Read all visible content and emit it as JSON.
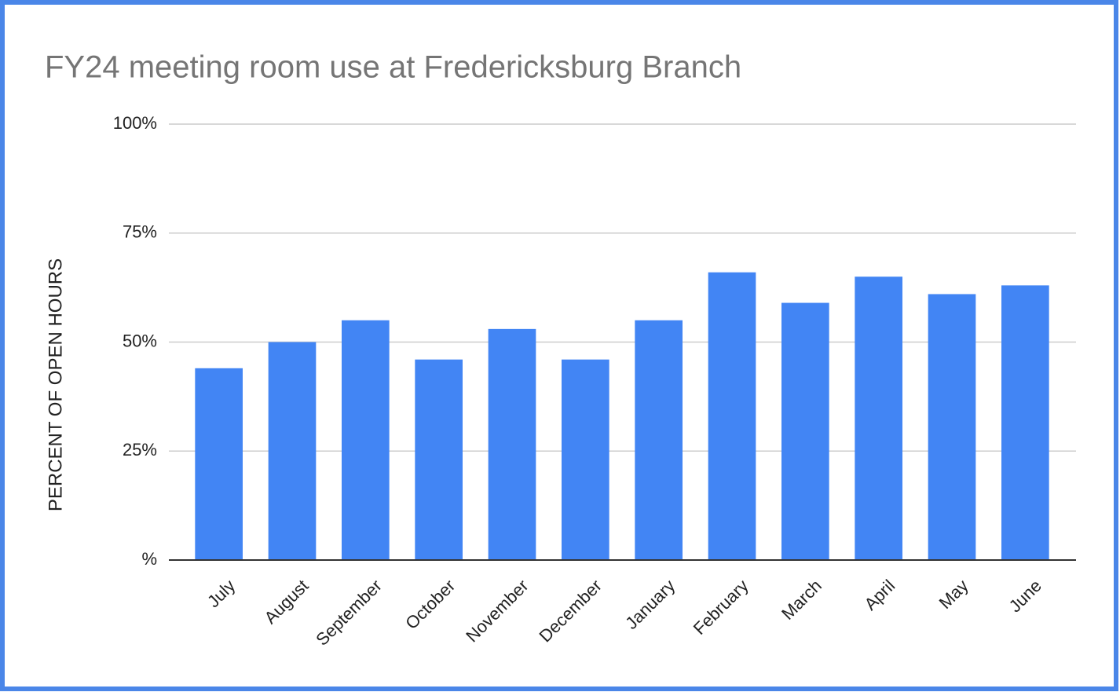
{
  "chart_data": {
    "type": "bar",
    "title": "FY24 meeting room use at Fredericksburg Branch",
    "y_label": "PERCENT OF OPEN HOURS",
    "categories": [
      "July",
      "August",
      "September",
      "October",
      "November",
      "December",
      "January",
      "February",
      "March",
      "April",
      "May",
      "June"
    ],
    "values": [
      44,
      50,
      55,
      46,
      53,
      46,
      55,
      66,
      59,
      65,
      61,
      63
    ],
    "color": "#4285f4",
    "ylim": [
      0,
      100
    ],
    "yticks": [
      {
        "value": 0,
        "label": "%"
      },
      {
        "value": 25,
        "label": "25%"
      },
      {
        "value": 50,
        "label": "50%"
      },
      {
        "value": 75,
        "label": "75%"
      },
      {
        "value": 100,
        "label": "100%"
      }
    ],
    "grid": true
  }
}
